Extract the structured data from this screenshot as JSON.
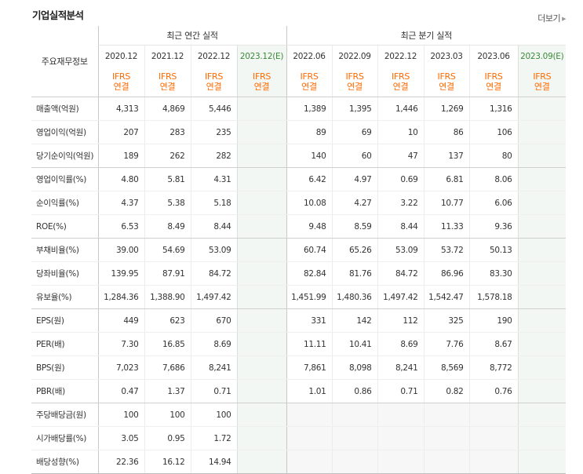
{
  "section_title": "기업실적분석",
  "more_label": "더보기",
  "more_arrow": "▶",
  "row_header": "주요재무정보",
  "annual_header": "최근 연간 실적",
  "quarter_header": "최근 분기 실적",
  "ifrs_top": "IFRS",
  "ifrs_bottom": "연결",
  "periods": [
    "2020.12",
    "2021.12",
    "2022.12",
    "2023.12(E)",
    "2022.06",
    "2022.09",
    "2022.12",
    "2023.03",
    "2023.06",
    "2023.09(E)"
  ],
  "rows": [
    {
      "label": "매출액(억원)",
      "values": [
        "4,313",
        "4,869",
        "5,446",
        "",
        "1,389",
        "1,395",
        "1,446",
        "1,269",
        "1,316",
        ""
      ]
    },
    {
      "label": "영업이익(억원)",
      "values": [
        "207",
        "283",
        "235",
        "",
        "89",
        "69",
        "10",
        "86",
        "106",
        ""
      ]
    },
    {
      "label": "당기순이익(억원)",
      "values": [
        "189",
        "262",
        "282",
        "",
        "140",
        "60",
        "47",
        "137",
        "80",
        ""
      ]
    },
    {
      "label": "영업이익률(%)",
      "values": [
        "4.80",
        "5.81",
        "4.31",
        "",
        "6.42",
        "4.97",
        "0.69",
        "6.81",
        "8.06",
        ""
      ]
    },
    {
      "label": "순이익률(%)",
      "values": [
        "4.37",
        "5.38",
        "5.18",
        "",
        "10.08",
        "4.27",
        "3.22",
        "10.77",
        "6.06",
        ""
      ]
    },
    {
      "label": "ROE(%)",
      "values": [
        "6.53",
        "8.49",
        "8.44",
        "",
        "9.48",
        "8.59",
        "8.44",
        "11.33",
        "9.36",
        ""
      ]
    },
    {
      "label": "부채비율(%)",
      "values": [
        "39.00",
        "54.69",
        "53.09",
        "",
        "60.74",
        "65.26",
        "53.09",
        "53.72",
        "50.13",
        ""
      ]
    },
    {
      "label": "당좌비율(%)",
      "values": [
        "139.95",
        "87.91",
        "84.72",
        "",
        "82.84",
        "81.76",
        "84.72",
        "86.96",
        "83.30",
        ""
      ]
    },
    {
      "label": "유보율(%)",
      "values": [
        "1,284.36",
        "1,388.90",
        "1,497.42",
        "",
        "1,451.99",
        "1,480.36",
        "1,497.42",
        "1,542.47",
        "1,578.18",
        ""
      ]
    },
    {
      "label": "EPS(원)",
      "values": [
        "449",
        "623",
        "670",
        "",
        "331",
        "142",
        "112",
        "325",
        "190",
        ""
      ]
    },
    {
      "label": "PER(배)",
      "values": [
        "7.30",
        "16.85",
        "8.69",
        "",
        "11.11",
        "10.41",
        "8.69",
        "7.76",
        "8.67",
        ""
      ]
    },
    {
      "label": "BPS(원)",
      "values": [
        "7,023",
        "7,686",
        "8,241",
        "",
        "7,861",
        "8,098",
        "8,241",
        "8,569",
        "8,772",
        ""
      ]
    },
    {
      "label": "PBR(배)",
      "values": [
        "0.47",
        "1.37",
        "0.71",
        "",
        "1.01",
        "0.86",
        "0.71",
        "0.82",
        "0.76",
        ""
      ]
    },
    {
      "label": "주당배당금(원)",
      "values": [
        "100",
        "100",
        "100",
        "",
        "",
        "",
        "",
        "",
        "",
        ""
      ]
    },
    {
      "label": "시가배당률(%)",
      "values": [
        "3.05",
        "0.95",
        "1.72",
        "",
        "",
        "",
        "",
        "",
        "",
        ""
      ]
    },
    {
      "label": "배당성향(%)",
      "values": [
        "22.36",
        "16.12",
        "14.94",
        "",
        "",
        "",
        "",
        "",
        "",
        ""
      ]
    }
  ]
}
